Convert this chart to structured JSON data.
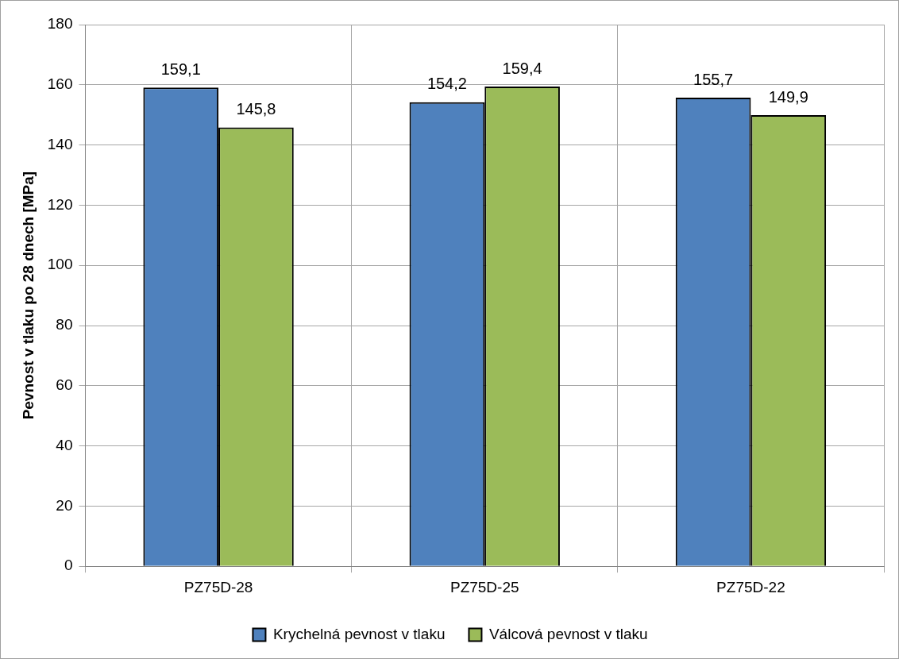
{
  "chart_data": {
    "type": "bar",
    "ylabel": "Pevnost v tlaku po 28 dnech [MPa]",
    "categories": [
      "PZ75D-28",
      "PZ75D-25",
      "PZ75D-22"
    ],
    "series": [
      {
        "name": "Krychelná pevnost v tlaku",
        "color": "#4f81bd",
        "values": [
          159.1,
          154.2,
          155.7
        ],
        "value_labels": [
          "159,1",
          "154,2",
          "155,7"
        ]
      },
      {
        "name": "Válcová pevnost v tlaku",
        "color": "#9bbb59",
        "values": [
          145.8,
          159.4,
          149.9
        ],
        "value_labels": [
          "145,8",
          "159,4",
          "149,9"
        ]
      }
    ],
    "ylim": [
      0,
      180
    ],
    "yticks": [
      0,
      20,
      40,
      60,
      80,
      100,
      120,
      140,
      160,
      180
    ],
    "grid": true,
    "legend": "bottom"
  }
}
